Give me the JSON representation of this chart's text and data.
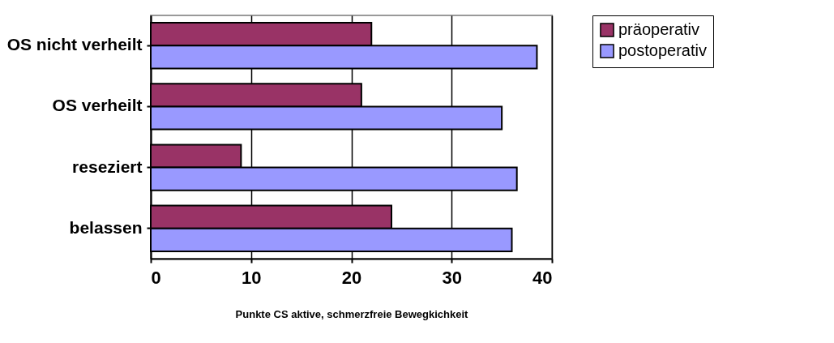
{
  "chart_data": {
    "type": "bar",
    "orientation": "horizontal",
    "xlabel": "Punkte CS aktive, schmerzfreie Bewegkichkeit",
    "categories": [
      "OS nicht verheilt",
      "OS verheilt",
      "reseziert",
      "belassen"
    ],
    "series": [
      {
        "name": "präoperativ",
        "color": "#993366",
        "values": [
          22,
          21,
          9,
          24
        ]
      },
      {
        "name": "postoperativ",
        "color": "#9999ff",
        "values": [
          38.5,
          35,
          36.5,
          36
        ]
      }
    ],
    "xlim": [
      0,
      40
    ],
    "xticks": [
      0,
      10,
      20,
      30,
      40
    ],
    "grid": "x",
    "legend": "right"
  }
}
